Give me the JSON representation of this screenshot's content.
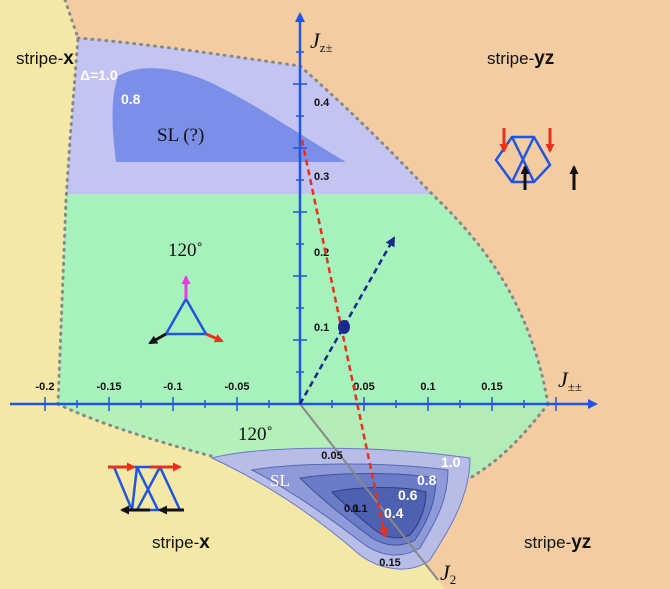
{
  "axes": {
    "vertical_label": "J",
    "vertical_sub": "z±",
    "horizontal_label": "J",
    "horizontal_sub": "±±",
    "lower_label": "J",
    "lower_sub": "2",
    "x_ticks": [
      "-0.2",
      "-0.15",
      "-0.1",
      "-0.05",
      "0.05",
      "0.1",
      "0.15"
    ],
    "y_ticks": [
      "0.4",
      "0.3",
      "0.2",
      "0.1"
    ],
    "j2_ticks": [
      "0.05",
      "0.1",
      "0.15"
    ]
  },
  "regions": {
    "stripe_x_top": {
      "prefix": "stripe-",
      "suffix": "x"
    },
    "stripe_yz_top": {
      "prefix": "stripe-",
      "suffix": "yz"
    },
    "stripe_x_bottom": {
      "prefix": "stripe-",
      "suffix": "x"
    },
    "stripe_yz_bottom": {
      "prefix": "stripe-",
      "suffix": "yz"
    },
    "phase_120_top": "120˚",
    "phase_120_bottom": "120˚",
    "sl_top": "SL (?)",
    "sl_bottom": "SL"
  },
  "contours_top": [
    "Δ=1.0",
    "0.8"
  ],
  "contours_bottom": [
    "1.0",
    "0.8",
    "0.6",
    "0.4",
    "0.1"
  ],
  "colors": {
    "stripe_x": "#f3e8a6",
    "stripe_yz": "#f3cda1",
    "phase_120": "#a7f1bd",
    "sl_light": "#c3c4f1",
    "sl_dark": "#7b8fe8",
    "axis": "#2255dd",
    "red_arrow": "#e8301c",
    "navy_arrow": "#1a2a8c",
    "magenta_arrow": "#e040e0"
  }
}
